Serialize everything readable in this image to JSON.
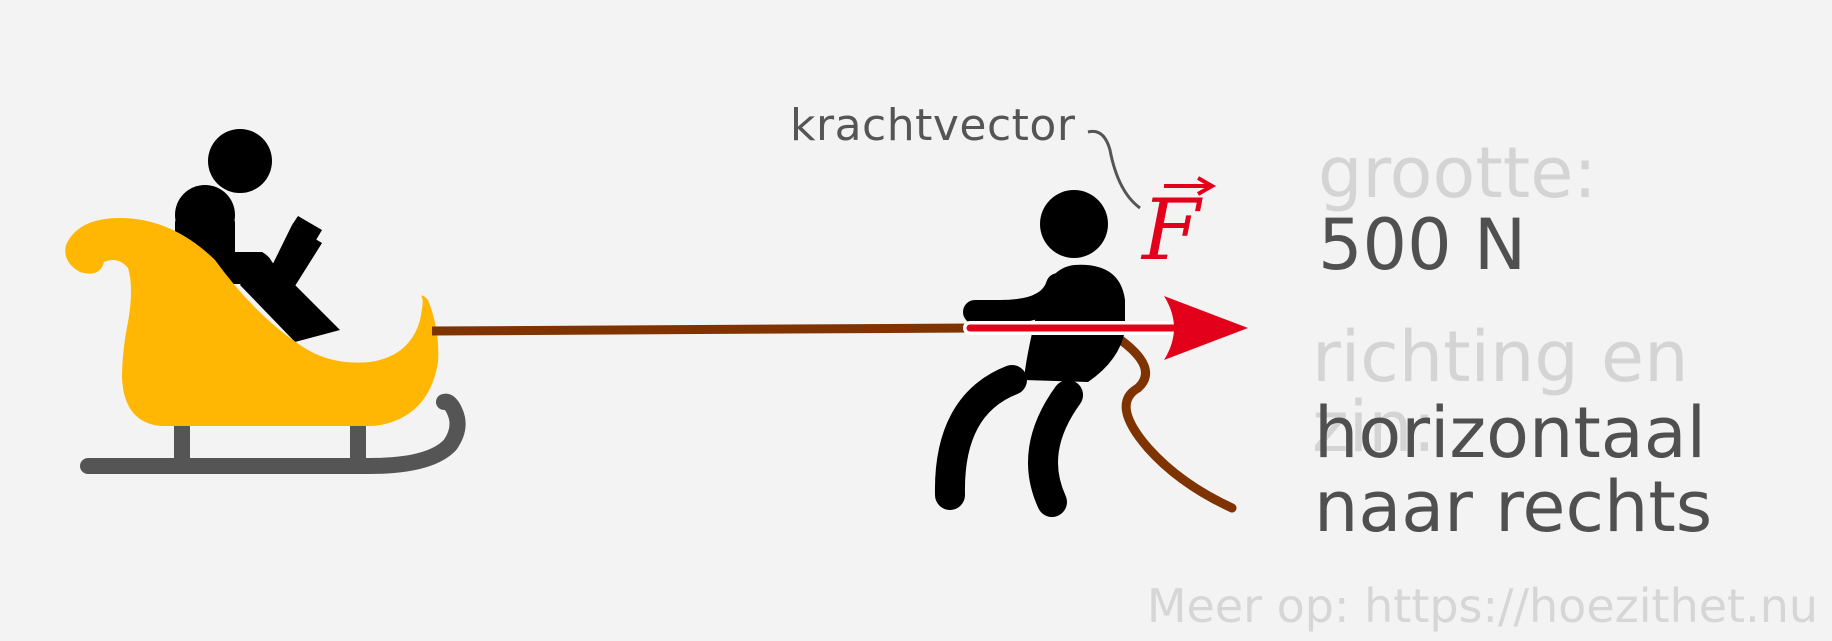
{
  "diagram": {
    "vector_label": "krachtvector",
    "force_symbol": "F",
    "magnitude_heading": "grootte:",
    "magnitude_value": "500 N",
    "direction_heading": "richting en zin:",
    "direction_line1": "horizontaal",
    "direction_line2": "naar rechts",
    "footer": "Meer op: https://hoezithet.nu"
  },
  "colors": {
    "sled": "#ffb703",
    "runner": "#555555",
    "rope": "#7f3300",
    "arrow": "#e3001b",
    "figure": "#000000"
  }
}
